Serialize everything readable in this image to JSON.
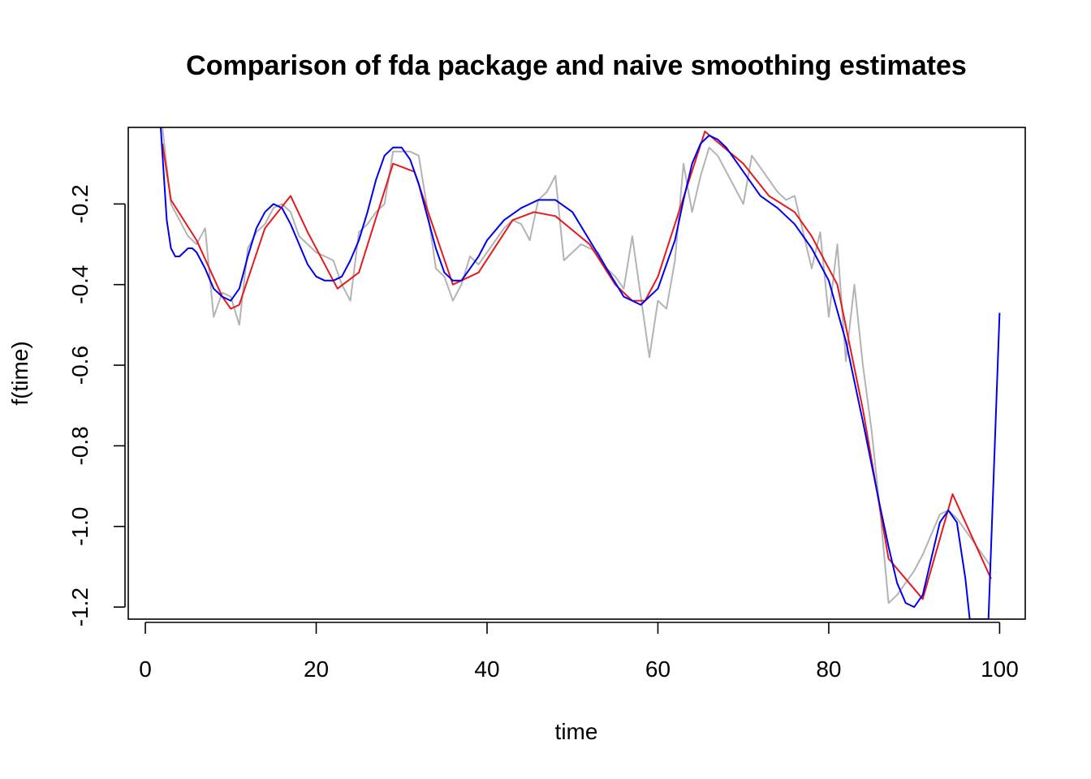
{
  "chart_data": {
    "type": "line",
    "title": "Comparison of fda package and naive smoothing estimates",
    "xlabel": "time",
    "ylabel": "f(time)",
    "xlim": [
      -2,
      103
    ],
    "ylim": [
      -1.23,
      -0.01
    ],
    "x_ticks": [
      0,
      20,
      40,
      60,
      80,
      100
    ],
    "x_tick_labels": [
      "0",
      "20",
      "40",
      "60",
      "80",
      "100"
    ],
    "y_ticks": [
      -1.2,
      -1.0,
      -0.8,
      -0.6,
      -0.4,
      -0.2
    ],
    "y_tick_labels": [
      "-1.2",
      "-1.0",
      "-0.8",
      "-0.6",
      "-0.4",
      "-0.2"
    ],
    "grid": false,
    "legend": "none",
    "colors": {
      "raw": "#b3b3b3",
      "naive": "#e41a1c",
      "fda": "#0000ee"
    },
    "series": [
      {
        "color": "#b3b3b3",
        "x": [
          2,
          3,
          4,
          5,
          6,
          7,
          8,
          9,
          10,
          11,
          12,
          13,
          14,
          15,
          16,
          17,
          18,
          19,
          20,
          22,
          23,
          24,
          25,
          26,
          27,
          28,
          29,
          30,
          31,
          32,
          33,
          34,
          35,
          36,
          37,
          38,
          39,
          40,
          41,
          42,
          43,
          44,
          45,
          46,
          47,
          48,
          49,
          50,
          51,
          52,
          53,
          54,
          55,
          56,
          57,
          58,
          59,
          60,
          61,
          62,
          63,
          64,
          65,
          66,
          67,
          68,
          69,
          70,
          71,
          72,
          73,
          74,
          75,
          76,
          77,
          78,
          79,
          80,
          81,
          82,
          83,
          84,
          85,
          86,
          87,
          88,
          89,
          90,
          91,
          92,
          93,
          94,
          95,
          96,
          97,
          98,
          99
        ],
        "y": [
          -0.01,
          -0.2,
          -0.24,
          -0.28,
          -0.3,
          -0.26,
          -0.48,
          -0.42,
          -0.43,
          -0.5,
          -0.31,
          -0.27,
          -0.25,
          -0.21,
          -0.2,
          -0.22,
          -0.28,
          -0.3,
          -0.32,
          -0.34,
          -0.4,
          -0.44,
          -0.27,
          -0.25,
          -0.22,
          -0.2,
          -0.07,
          -0.07,
          -0.07,
          -0.08,
          -0.21,
          -0.36,
          -0.38,
          -0.44,
          -0.4,
          -0.33,
          -0.35,
          -0.32,
          -0.29,
          -0.26,
          -0.24,
          -0.25,
          -0.29,
          -0.19,
          -0.17,
          -0.13,
          -0.34,
          -0.32,
          -0.3,
          -0.31,
          -0.32,
          -0.36,
          -0.38,
          -0.41,
          -0.28,
          -0.43,
          -0.58,
          -0.44,
          -0.46,
          -0.34,
          -0.1,
          -0.22,
          -0.13,
          -0.06,
          -0.08,
          -0.12,
          -0.16,
          -0.2,
          -0.08,
          -0.11,
          -0.14,
          -0.17,
          -0.19,
          -0.18,
          -0.27,
          -0.36,
          -0.27,
          -0.48,
          -0.3,
          -0.59,
          -0.4,
          -0.6,
          -0.76,
          -0.96,
          -1.19,
          -1.17,
          -1.14,
          -1.11,
          -1.07,
          -1.02,
          -0.97,
          -0.96,
          -0.98,
          -1.01,
          -1.04,
          -1.07,
          -1.1
        ]
      },
      {
        "color": "#e41a1c",
        "x": [
          2,
          3,
          6,
          9,
          10,
          11,
          14,
          17,
          19,
          22.5,
          25,
          29,
          31.5,
          36,
          39,
          43,
          45.5,
          48,
          52,
          55,
          57,
          58.5,
          60,
          65.5,
          70,
          73,
          76,
          78,
          81,
          84,
          87,
          91,
          94.5,
          99
        ],
        "y": [
          -0.05,
          -0.19,
          -0.29,
          -0.43,
          -0.46,
          -0.45,
          -0.26,
          -0.18,
          -0.27,
          -0.41,
          -0.37,
          -0.1,
          -0.12,
          -0.4,
          -0.37,
          -0.24,
          -0.22,
          -0.23,
          -0.3,
          -0.4,
          -0.44,
          -0.44,
          -0.38,
          -0.02,
          -0.1,
          -0.18,
          -0.22,
          -0.28,
          -0.4,
          -0.71,
          -1.08,
          -1.18,
          -0.92,
          -1.13
        ]
      },
      {
        "color": "#0000ee",
        "x": [
          1.8,
          2.5,
          3,
          3.5,
          4,
          4.5,
          5,
          5.5,
          6,
          7,
          8,
          9,
          10,
          11,
          12,
          13,
          14,
          15,
          16,
          17,
          18,
          19,
          20,
          21,
          22,
          23,
          24,
          25,
          26,
          27,
          28,
          29,
          30,
          31,
          32,
          33,
          34,
          35,
          36,
          37,
          38,
          39,
          40,
          42,
          44,
          46,
          48,
          50,
          52,
          54,
          56,
          58,
          60,
          62,
          63,
          64,
          65,
          66,
          67,
          68,
          70,
          72,
          74,
          76,
          78,
          80,
          82,
          84,
          86,
          87,
          88,
          89,
          90,
          91,
          92,
          93,
          94,
          95,
          96,
          96.5,
          98.7,
          100
        ],
        "y": [
          -0.01,
          -0.24,
          -0.31,
          -0.33,
          -0.33,
          -0.32,
          -0.31,
          -0.31,
          -0.32,
          -0.36,
          -0.41,
          -0.43,
          -0.44,
          -0.41,
          -0.33,
          -0.26,
          -0.22,
          -0.2,
          -0.21,
          -0.25,
          -0.3,
          -0.35,
          -0.38,
          -0.39,
          -0.39,
          -0.38,
          -0.34,
          -0.29,
          -0.22,
          -0.14,
          -0.08,
          -0.06,
          -0.06,
          -0.09,
          -0.15,
          -0.23,
          -0.31,
          -0.37,
          -0.39,
          -0.39,
          -0.36,
          -0.33,
          -0.29,
          -0.24,
          -0.21,
          -0.19,
          -0.19,
          -0.22,
          -0.29,
          -0.36,
          -0.43,
          -0.45,
          -0.41,
          -0.29,
          -0.19,
          -0.1,
          -0.05,
          -0.03,
          -0.04,
          -0.06,
          -0.12,
          -0.18,
          -0.21,
          -0.25,
          -0.31,
          -0.39,
          -0.54,
          -0.74,
          -0.95,
          -1.05,
          -1.14,
          -1.19,
          -1.2,
          -1.17,
          -1.08,
          -0.99,
          -0.96,
          -0.99,
          -1.13,
          -1.23,
          -1.23,
          -0.47
        ]
      }
    ]
  }
}
